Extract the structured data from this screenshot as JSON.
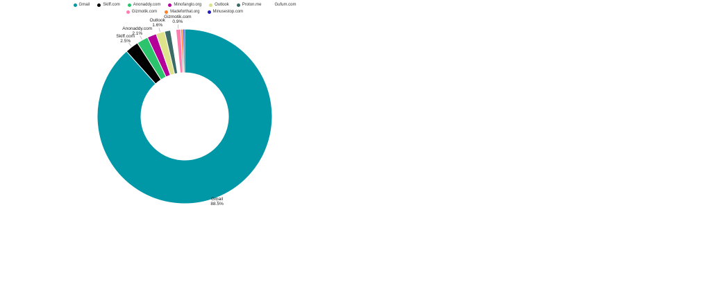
{
  "chart_data": {
    "type": "pie",
    "subtype": "donut",
    "title": "",
    "legend_position": "top",
    "label_format": "{name} {value}%",
    "series": [
      {
        "name": "Gmail",
        "value": 88.5,
        "color": "#0097A7",
        "label_visible": true
      },
      {
        "name": "Skiff.com",
        "value": 2.5,
        "color": "#000000",
        "label_visible": true
      },
      {
        "name": "Anonaddy.com",
        "value": 2.1,
        "color": "#2BC46D",
        "label_visible": true
      },
      {
        "name": "Minofanglo.org",
        "value": 1.7,
        "color": "#B40098",
        "label_visible": false
      },
      {
        "name": "Outlook",
        "value": 1.6,
        "color": "#DEE289",
        "label_visible": true
      },
      {
        "name": "Proton.me",
        "value": 1.1,
        "color": "#3A6B66",
        "label_visible": false
      },
      {
        "name": "Gufum.com",
        "value": 1.0,
        "color": "#FFFFFF",
        "label_visible": false
      },
      {
        "name": "Gizmotik.com",
        "value": 0.9,
        "color": "#FF7CAE",
        "label_visible": true
      },
      {
        "name": "Madeforthat.org",
        "value": 0.4,
        "color": "#FF7F2A",
        "label_visible": false
      },
      {
        "name": "Minusestop.com",
        "value": 0.3,
        "color": "#241CBF",
        "label_visible": false
      }
    ],
    "legend_rows": [
      [
        "Gmail",
        "Skiff.com",
        "Anonaddy.com",
        "Minofanglo.org",
        "Outlook",
        "Proton.me",
        "Gufum.com"
      ],
      [
        "Gizmotik.com",
        "Madeforthat.org",
        "Minusestop.com"
      ]
    ],
    "visible_labels": [
      {
        "name": "Gmail",
        "percent_text": "88.5%"
      },
      {
        "name": "Skiff.com",
        "percent_text": "2.5%"
      },
      {
        "name": "Anonaddy.com",
        "percent_text": "2.1%"
      },
      {
        "name": "Outlook",
        "percent_text": "1.6%"
      },
      {
        "name": "Gizmotik.com",
        "percent_text": "0.9%"
      }
    ]
  }
}
